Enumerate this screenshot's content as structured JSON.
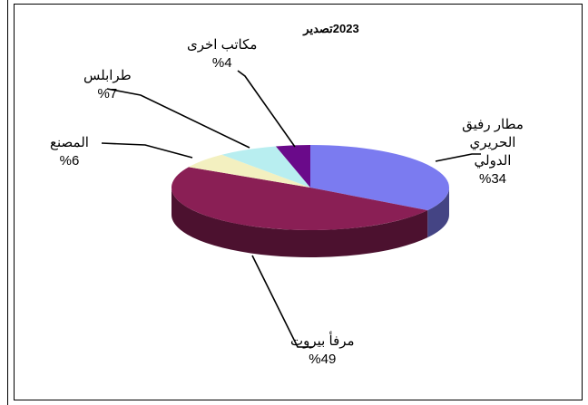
{
  "chart_data": {
    "type": "pie",
    "title": "2023تصدير",
    "slices": [
      {
        "label": "مطار رفيق الحريري الدولي",
        "value": 34,
        "value_label": "%34",
        "color": "#7b7bf0"
      },
      {
        "label": "مرفأ بيروت",
        "value": 49,
        "value_label": "%49",
        "color": "#8a1f55"
      },
      {
        "label": "المصنع",
        "value": 6,
        "value_label": "%6",
        "color": "#f3f0c0"
      },
      {
        "label": "طرابلس",
        "value": 7,
        "value_label": "%7",
        "color": "#b8eef0"
      },
      {
        "label": "مكاتب اخرى",
        "value": 4,
        "value_label": "%4",
        "color": "#6a0a8a"
      }
    ],
    "legend": "none",
    "style": "3d-pie"
  }
}
